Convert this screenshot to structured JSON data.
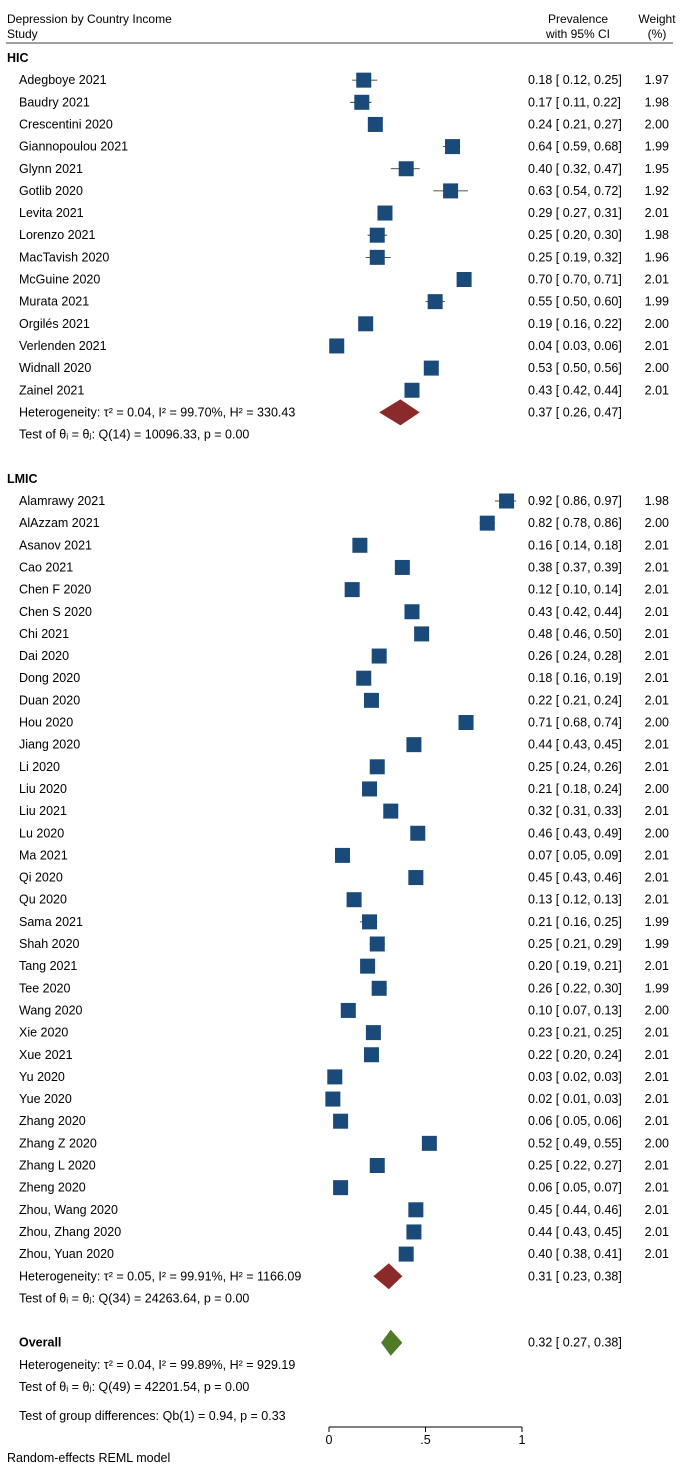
{
  "header": {
    "title": "Depression by Country Income",
    "study_label": "Study",
    "prev_label_1": "Prevalence",
    "prev_label_2": "with 95% CI",
    "weight_label_1": "Weight",
    "weight_label_2": "(%)"
  },
  "footer_note": "Random-effects REML model",
  "chart_data": {
    "type": "forest",
    "xlim": [
      0,
      1
    ],
    "xticks": [
      {
        "value": 0,
        "label": "0"
      },
      {
        "value": 0.5,
        "label": ".5"
      },
      {
        "value": 1,
        "label": "1"
      }
    ],
    "colors": {
      "study_marker": "#1a4a7a",
      "subgroup_diamond": "#8b2a2a",
      "overall_diamond": "#4f7a28"
    },
    "groups": [
      {
        "name": "HIC",
        "studies": [
          {
            "study": "Adegboye 2021",
            "est": 0.18,
            "lo": 0.12,
            "hi": 0.25,
            "weight": "1.97",
            "ci_text": "0.18 [ 0.12, 0.25]"
          },
          {
            "study": "Baudry 2021",
            "est": 0.17,
            "lo": 0.11,
            "hi": 0.22,
            "weight": "1.98",
            "ci_text": "0.17 [ 0.11, 0.22]"
          },
          {
            "study": "Crescentini 2020",
            "est": 0.24,
            "lo": 0.21,
            "hi": 0.27,
            "weight": "2.00",
            "ci_text": "0.24 [ 0.21, 0.27]"
          },
          {
            "study": "Giannopoulou 2021",
            "est": 0.64,
            "lo": 0.59,
            "hi": 0.68,
            "weight": "1.99",
            "ci_text": "0.64 [ 0.59, 0.68]"
          },
          {
            "study": "Glynn 2021",
            "est": 0.4,
            "lo": 0.32,
            "hi": 0.47,
            "weight": "1.95",
            "ci_text": "0.40 [ 0.32, 0.47]"
          },
          {
            "study": "Gotlib 2020",
            "est": 0.63,
            "lo": 0.54,
            "hi": 0.72,
            "weight": "1.92",
            "ci_text": "0.63 [ 0.54, 0.72]"
          },
          {
            "study": "Levita 2021",
            "est": 0.29,
            "lo": 0.27,
            "hi": 0.31,
            "weight": "2.01",
            "ci_text": "0.29 [ 0.27, 0.31]"
          },
          {
            "study": "Lorenzo 2021",
            "est": 0.25,
            "lo": 0.2,
            "hi": 0.3,
            "weight": "1.98",
            "ci_text": "0.25 [ 0.20, 0.30]"
          },
          {
            "study": "MacTavish 2020",
            "est": 0.25,
            "lo": 0.19,
            "hi": 0.32,
            "weight": "1.96",
            "ci_text": "0.25 [ 0.19, 0.32]"
          },
          {
            "study": "McGuine 2020",
            "est": 0.7,
            "lo": 0.7,
            "hi": 0.71,
            "weight": "2.01",
            "ci_text": "0.70 [ 0.70, 0.71]"
          },
          {
            "study": "Murata 2021",
            "est": 0.55,
            "lo": 0.5,
            "hi": 0.6,
            "weight": "1.99",
            "ci_text": "0.55 [ 0.50, 0.60]"
          },
          {
            "study": "Orgilés 2021",
            "est": 0.19,
            "lo": 0.16,
            "hi": 0.22,
            "weight": "2.00",
            "ci_text": "0.19 [ 0.16, 0.22]"
          },
          {
            "study": "Verlenden 2021",
            "est": 0.04,
            "lo": 0.03,
            "hi": 0.06,
            "weight": "2.01",
            "ci_text": "0.04 [ 0.03, 0.06]"
          },
          {
            "study": "Widnall 2020",
            "est": 0.53,
            "lo": 0.5,
            "hi": 0.56,
            "weight": "2.00",
            "ci_text": "0.53 [ 0.50, 0.56]"
          },
          {
            "study": "Zainel 2021",
            "est": 0.43,
            "lo": 0.42,
            "hi": 0.44,
            "weight": "2.01",
            "ci_text": "0.43 [ 0.42, 0.44]"
          }
        ],
        "summary": {
          "est": 0.37,
          "lo": 0.26,
          "hi": 0.47,
          "ci_text": "0.37 [ 0.26, 0.47]"
        },
        "heterogeneity": "Heterogeneity: τ² = 0.04, I² = 99.70%, H² = 330.43",
        "test": "Test of θᵢ = θⱼ: Q(14) = 10096.33, p = 0.00"
      },
      {
        "name": "LMIC",
        "studies": [
          {
            "study": "Alamrawy 2021",
            "est": 0.92,
            "lo": 0.86,
            "hi": 0.97,
            "weight": "1.98",
            "ci_text": "0.92 [ 0.86, 0.97]"
          },
          {
            "study": "AlAzzam 2021",
            "est": 0.82,
            "lo": 0.78,
            "hi": 0.86,
            "weight": "2.00",
            "ci_text": "0.82 [ 0.78, 0.86]"
          },
          {
            "study": "Asanov 2021",
            "est": 0.16,
            "lo": 0.14,
            "hi": 0.18,
            "weight": "2.01",
            "ci_text": "0.16 [ 0.14, 0.18]"
          },
          {
            "study": "Cao 2021",
            "est": 0.38,
            "lo": 0.37,
            "hi": 0.39,
            "weight": "2.01",
            "ci_text": "0.38 [ 0.37, 0.39]"
          },
          {
            "study": "Chen F 2020",
            "est": 0.12,
            "lo": 0.1,
            "hi": 0.14,
            "weight": "2.01",
            "ci_text": "0.12 [ 0.10, 0.14]"
          },
          {
            "study": "Chen S 2020",
            "est": 0.43,
            "lo": 0.42,
            "hi": 0.44,
            "weight": "2.01",
            "ci_text": "0.43 [ 0.42, 0.44]"
          },
          {
            "study": "Chi 2021",
            "est": 0.48,
            "lo": 0.46,
            "hi": 0.5,
            "weight": "2.01",
            "ci_text": "0.48 [ 0.46, 0.50]"
          },
          {
            "study": "Dai 2020",
            "est": 0.26,
            "lo": 0.24,
            "hi": 0.28,
            "weight": "2.01",
            "ci_text": "0.26 [ 0.24, 0.28]"
          },
          {
            "study": "Dong 2020",
            "est": 0.18,
            "lo": 0.16,
            "hi": 0.19,
            "weight": "2.01",
            "ci_text": "0.18 [ 0.16, 0.19]"
          },
          {
            "study": "Duan 2020",
            "est": 0.22,
            "lo": 0.21,
            "hi": 0.24,
            "weight": "2.01",
            "ci_text": "0.22 [ 0.21, 0.24]"
          },
          {
            "study": "Hou 2020",
            "est": 0.71,
            "lo": 0.68,
            "hi": 0.74,
            "weight": "2.00",
            "ci_text": "0.71 [ 0.68, 0.74]"
          },
          {
            "study": "Jiang 2020",
            "est": 0.44,
            "lo": 0.43,
            "hi": 0.45,
            "weight": "2.01",
            "ci_text": "0.44 [ 0.43, 0.45]"
          },
          {
            "study": "Li 2020",
            "est": 0.25,
            "lo": 0.24,
            "hi": 0.26,
            "weight": "2.01",
            "ci_text": "0.25 [ 0.24, 0.26]"
          },
          {
            "study": "Liu 2020",
            "est": 0.21,
            "lo": 0.18,
            "hi": 0.24,
            "weight": "2.00",
            "ci_text": "0.21 [ 0.18, 0.24]"
          },
          {
            "study": "Liu 2021",
            "est": 0.32,
            "lo": 0.31,
            "hi": 0.33,
            "weight": "2.01",
            "ci_text": "0.32 [ 0.31, 0.33]"
          },
          {
            "study": "Lu 2020",
            "est": 0.46,
            "lo": 0.43,
            "hi": 0.49,
            "weight": "2.00",
            "ci_text": "0.46 [ 0.43, 0.49]"
          },
          {
            "study": "Ma 2021",
            "est": 0.07,
            "lo": 0.05,
            "hi": 0.09,
            "weight": "2.01",
            "ci_text": "0.07 [ 0.05, 0.09]"
          },
          {
            "study": "Qi 2020",
            "est": 0.45,
            "lo": 0.43,
            "hi": 0.46,
            "weight": "2.01",
            "ci_text": "0.45 [ 0.43, 0.46]"
          },
          {
            "study": "Qu 2020",
            "est": 0.13,
            "lo": 0.12,
            "hi": 0.13,
            "weight": "2.01",
            "ci_text": "0.13 [ 0.12, 0.13]"
          },
          {
            "study": "Sama 2021",
            "est": 0.21,
            "lo": 0.16,
            "hi": 0.25,
            "weight": "1.99",
            "ci_text": "0.21 [ 0.16, 0.25]"
          },
          {
            "study": "Shah 2020",
            "est": 0.25,
            "lo": 0.21,
            "hi": 0.29,
            "weight": "1.99",
            "ci_text": "0.25 [ 0.21, 0.29]"
          },
          {
            "study": "Tang 2021",
            "est": 0.2,
            "lo": 0.19,
            "hi": 0.21,
            "weight": "2.01",
            "ci_text": "0.20 [ 0.19, 0.21]"
          },
          {
            "study": "Tee 2020",
            "est": 0.26,
            "lo": 0.22,
            "hi": 0.3,
            "weight": "1.99",
            "ci_text": "0.26 [ 0.22, 0.30]"
          },
          {
            "study": "Wang 2020",
            "est": 0.1,
            "lo": 0.07,
            "hi": 0.13,
            "weight": "2.00",
            "ci_text": "0.10 [ 0.07, 0.13]"
          },
          {
            "study": "Xie 2020",
            "est": 0.23,
            "lo": 0.21,
            "hi": 0.25,
            "weight": "2.01",
            "ci_text": "0.23 [ 0.21, 0.25]"
          },
          {
            "study": "Xue 2021",
            "est": 0.22,
            "lo": 0.2,
            "hi": 0.24,
            "weight": "2.01",
            "ci_text": "0.22 [ 0.20, 0.24]"
          },
          {
            "study": "Yu 2020",
            "est": 0.03,
            "lo": 0.02,
            "hi": 0.03,
            "weight": "2.01",
            "ci_text": "0.03 [ 0.02, 0.03]"
          },
          {
            "study": "Yue 2020",
            "est": 0.02,
            "lo": 0.01,
            "hi": 0.03,
            "weight": "2.01",
            "ci_text": "0.02 [ 0.01, 0.03]"
          },
          {
            "study": "Zhang 2020",
            "est": 0.06,
            "lo": 0.05,
            "hi": 0.06,
            "weight": "2.01",
            "ci_text": "0.06 [ 0.05, 0.06]"
          },
          {
            "study": "Zhang Z 2020",
            "est": 0.52,
            "lo": 0.49,
            "hi": 0.55,
            "weight": "2.00",
            "ci_text": "0.52 [ 0.49, 0.55]"
          },
          {
            "study": "Zhang L 2020",
            "est": 0.25,
            "lo": 0.22,
            "hi": 0.27,
            "weight": "2.01",
            "ci_text": "0.25 [ 0.22, 0.27]"
          },
          {
            "study": "Zheng 2020",
            "est": 0.06,
            "lo": 0.05,
            "hi": 0.07,
            "weight": "2.01",
            "ci_text": "0.06 [ 0.05, 0.07]"
          },
          {
            "study": "Zhou, Wang 2020",
            "est": 0.45,
            "lo": 0.44,
            "hi": 0.46,
            "weight": "2.01",
            "ci_text": "0.45 [ 0.44, 0.46]"
          },
          {
            "study": "Zhou, Zhang 2020",
            "est": 0.44,
            "lo": 0.43,
            "hi": 0.45,
            "weight": "2.01",
            "ci_text": "0.44 [ 0.43, 0.45]"
          },
          {
            "study": "Zhou, Yuan 2020",
            "est": 0.4,
            "lo": 0.38,
            "hi": 0.41,
            "weight": "2.01",
            "ci_text": "0.40 [ 0.38, 0.41]"
          }
        ],
        "summary": {
          "est": 0.31,
          "lo": 0.23,
          "hi": 0.38,
          "ci_text": "0.31 [ 0.23, 0.38]"
        },
        "heterogeneity": "Heterogeneity: τ² = 0.05, I² = 99.91%, H² = 1166.09",
        "test": "Test of θᵢ = θⱼ: Q(34) = 24263.64, p = 0.00"
      }
    ],
    "overall": {
      "label": "Overall",
      "est": 0.32,
      "lo": 0.27,
      "hi": 0.38,
      "ci_text": "0.32 [ 0.27, 0.38]",
      "heterogeneity": "Heterogeneity: τ² = 0.04, I² = 99.89%, H² = 929.19",
      "test": "Test of θᵢ = θⱼ: Q(49) = 42201.54, p = 0.00",
      "group_test": "Test of group differences: Qb(1) = 0.94, p = 0.33"
    }
  }
}
